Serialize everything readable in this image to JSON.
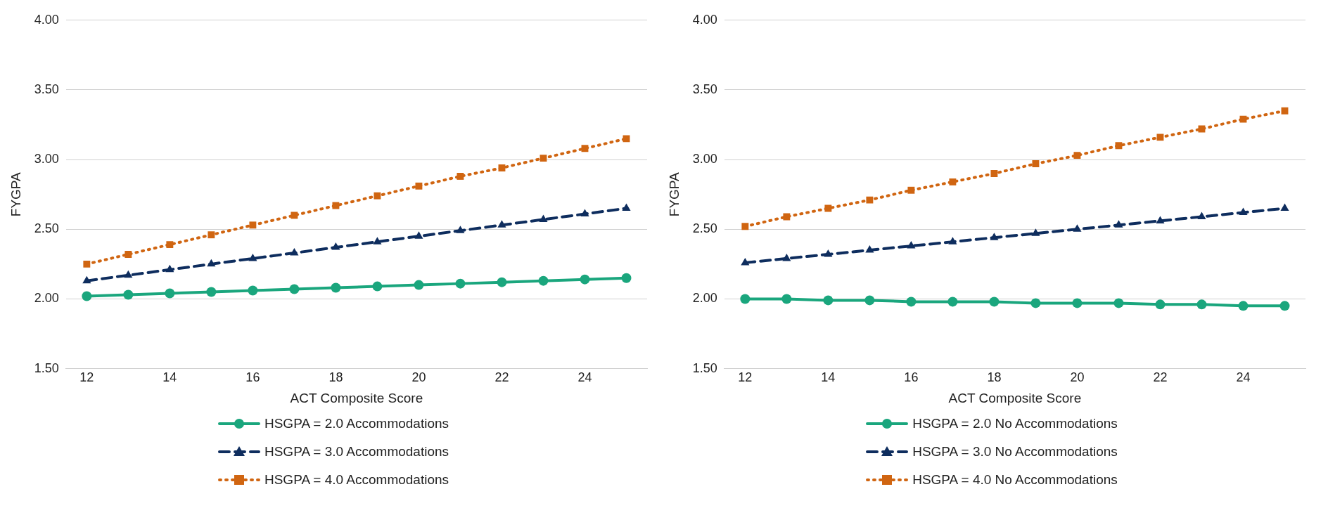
{
  "chart_data": [
    {
      "type": "line",
      "xlabel": "ACT Composite Score",
      "ylabel": "FYGPA",
      "x": [
        12,
        13,
        14,
        15,
        16,
        17,
        18,
        19,
        20,
        21,
        22,
        23,
        24,
        25
      ],
      "xlim": [
        11.5,
        25.5
      ],
      "xticks": [
        12,
        14,
        16,
        18,
        20,
        22,
        24
      ],
      "ylim": [
        1.5,
        4
      ],
      "yticks": [
        {
          "value": 1.5,
          "label": "1.50"
        },
        {
          "value": 2,
          "label": "2.00"
        },
        {
          "value": 2.5,
          "label": "2.50"
        },
        {
          "value": 3,
          "label": "3.00"
        },
        {
          "value": 3.5,
          "label": "3.50"
        },
        {
          "value": 4,
          "label": "4.00"
        }
      ],
      "grid": "y",
      "legend": "bottom",
      "series": [
        {
          "name": "HSGPA = 2.0 Accommodations",
          "color": "#1aa67d",
          "marker": "circle",
          "line_style": "solid",
          "values": [
            2.02,
            2.03,
            2.04,
            2.05,
            2.06,
            2.07,
            2.08,
            2.09,
            2.1,
            2.11,
            2.12,
            2.13,
            2.14,
            2.15
          ]
        },
        {
          "name": "HSGPA = 3.0 Accommodations",
          "color": "#0e2d5e",
          "marker": "triangle",
          "line_style": "dashed",
          "values": [
            2.13,
            2.17,
            2.21,
            2.25,
            2.29,
            2.33,
            2.37,
            2.41,
            2.45,
            2.49,
            2.53,
            2.57,
            2.61,
            2.65
          ]
        },
        {
          "name": "HSGPA = 4.0 Accommodations",
          "color": "#d06511",
          "marker": "square",
          "line_style": "dotted",
          "values": [
            2.25,
            2.32,
            2.39,
            2.46,
            2.53,
            2.6,
            2.67,
            2.74,
            2.81,
            2.88,
            2.94,
            3.01,
            3.08,
            3.15
          ]
        }
      ]
    },
    {
      "type": "line",
      "xlabel": "ACT Composite Score",
      "ylabel": "FYGPA",
      "x": [
        12,
        13,
        14,
        15,
        16,
        17,
        18,
        19,
        20,
        21,
        22,
        23,
        24,
        25
      ],
      "xlim": [
        11.5,
        25.5
      ],
      "xticks": [
        12,
        14,
        16,
        18,
        20,
        22,
        24
      ],
      "ylim": [
        1.5,
        4
      ],
      "yticks": [
        {
          "value": 1.5,
          "label": "1.50"
        },
        {
          "value": 2,
          "label": "2.00"
        },
        {
          "value": 2.5,
          "label": "2.50"
        },
        {
          "value": 3,
          "label": "3.00"
        },
        {
          "value": 3.5,
          "label": "3.50"
        },
        {
          "value": 4,
          "label": "4.00"
        }
      ],
      "grid": "y",
      "legend": "bottom",
      "series": [
        {
          "name": "HSGPA = 2.0 No Accommodations",
          "color": "#1aa67d",
          "marker": "circle",
          "line_style": "solid",
          "values": [
            2.0,
            2.0,
            1.99,
            1.99,
            1.98,
            1.98,
            1.98,
            1.97,
            1.97,
            1.97,
            1.96,
            1.96,
            1.95,
            1.95
          ]
        },
        {
          "name": "HSGPA = 3.0 No Accommodations",
          "color": "#0e2d5e",
          "marker": "triangle",
          "line_style": "dashed",
          "values": [
            2.26,
            2.29,
            2.32,
            2.35,
            2.38,
            2.41,
            2.44,
            2.47,
            2.5,
            2.53,
            2.56,
            2.59,
            2.62,
            2.65
          ]
        },
        {
          "name": "HSGPA = 4.0 No Accommodations",
          "color": "#d06511",
          "marker": "square",
          "line_style": "dotted",
          "values": [
            2.52,
            2.59,
            2.65,
            2.71,
            2.78,
            2.84,
            2.9,
            2.97,
            3.03,
            3.1,
            3.16,
            3.22,
            3.29,
            3.35
          ]
        }
      ]
    }
  ]
}
